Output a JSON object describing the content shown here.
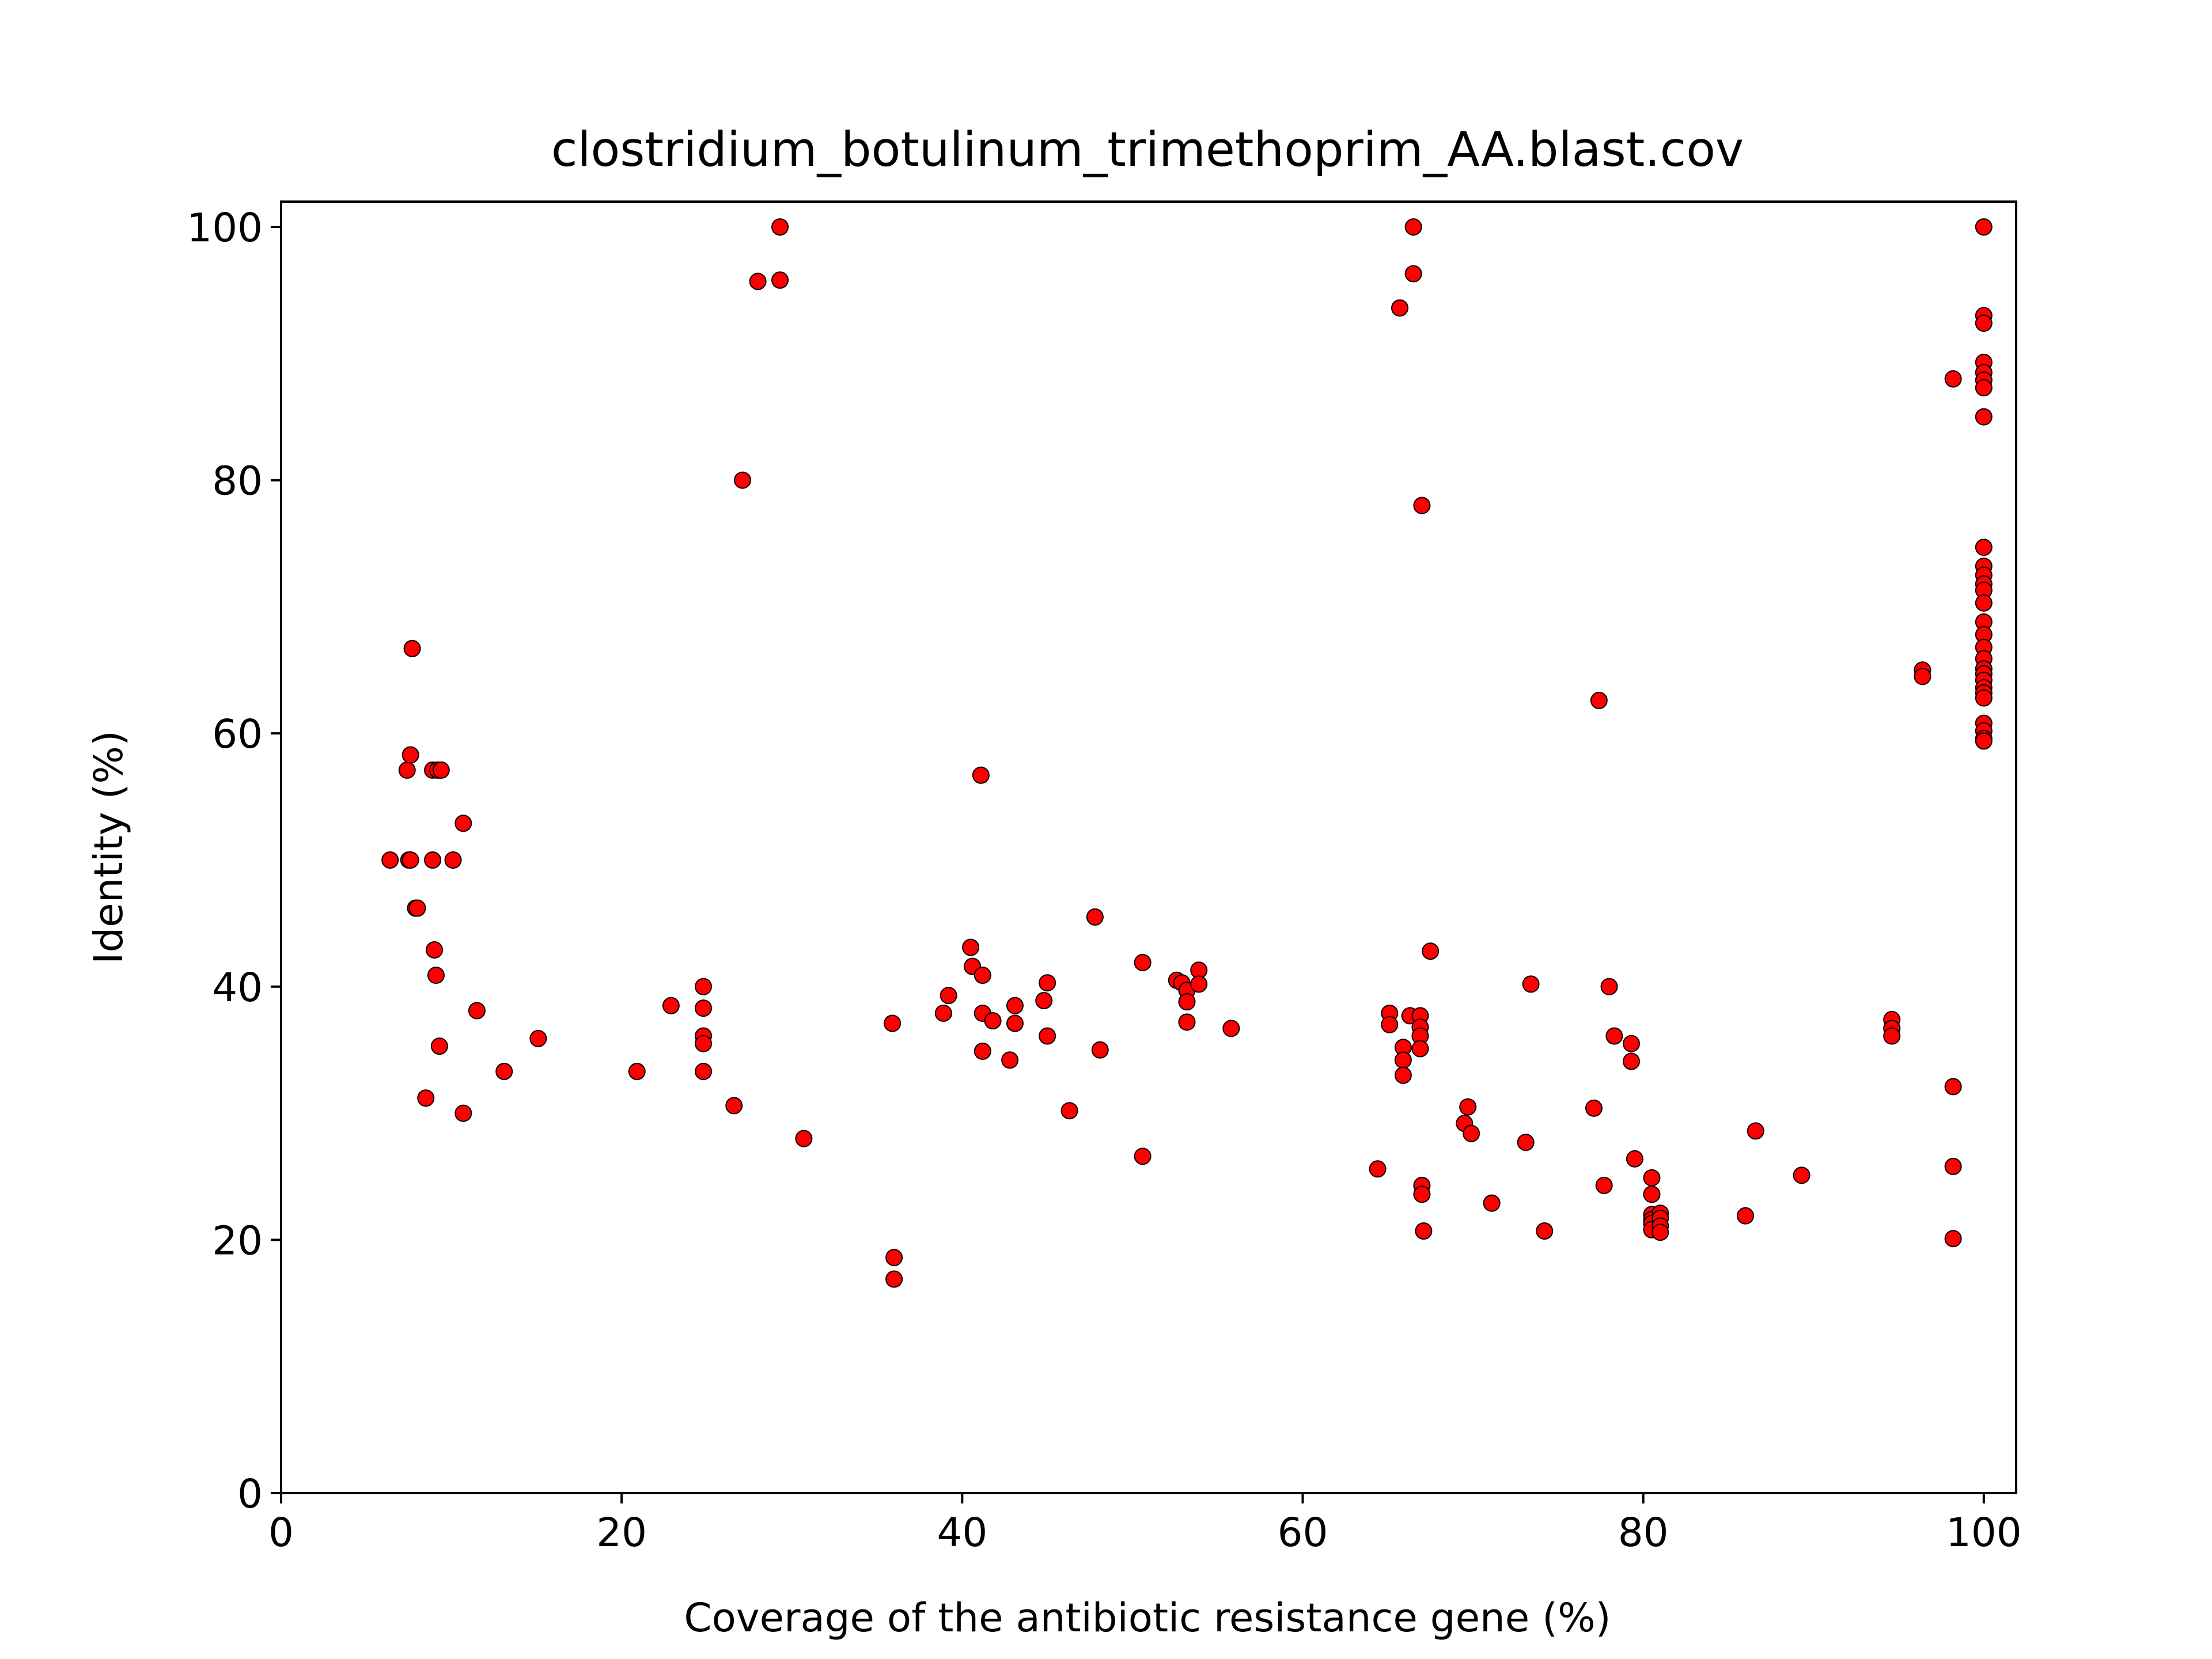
{
  "chart_data": {
    "type": "scatter",
    "title": "clostridium_botulinum_trimethoprim_AA.blast.cov",
    "xlabel": "Coverage of the antibiotic resistance gene (%)",
    "ylabel": "Identity (%)",
    "xlim": [
      0,
      101.9
    ],
    "ylim": [
      0,
      102
    ],
    "xticks": [
      "0",
      "20",
      "40",
      "60",
      "80",
      "100"
    ],
    "yticks": [
      "0",
      "20",
      "40",
      "60",
      "80",
      "100"
    ],
    "grid": false,
    "marker_color": "#ff0000",
    "marker_edge_color": "#000000",
    "x": [
      6.4,
      7.5,
      7.4,
      7.6,
      7.9,
      8.0,
      8.9,
      9.2,
      9.4,
      10.1,
      10.7,
      8.9,
      9.0,
      9.1,
      9.3,
      8.5,
      10.7,
      11.5,
      13.1,
      15.1,
      7.7,
      7.6,
      20.9,
      22.9,
      24.8,
      24.8,
      24.8,
      24.8,
      24.8,
      26.6,
      27.1,
      28.0,
      29.3,
      29.3,
      30.7,
      35.9,
      36.0,
      36.0,
      38.9,
      39.2,
      40.5,
      40.6,
      41.1,
      41.2,
      41.2,
      41.8,
      41.2,
      42.8,
      43.1,
      43.1,
      44.8,
      45.0,
      45.0,
      46.3,
      47.8,
      48.1,
      50.6,
      50.6,
      52.6,
      52.9,
      53.2,
      53.2,
      53.2,
      53.9,
      53.9,
      55.8,
      64.4,
      65.1,
      65.1,
      65.7,
      65.9,
      65.9,
      65.9,
      66.3,
      66.5,
      66.5,
      66.9,
      66.9,
      66.9,
      66.9,
      67.0,
      67.0,
      67.0,
      67.1,
      67.5,
      69.5,
      69.7,
      69.9,
      71.1,
      73.1,
      73.4,
      74.2,
      77.1,
      77.4,
      77.7,
      78.0,
      78.3,
      79.3,
      79.3,
      79.5,
      80.5,
      80.5,
      80.5,
      80.5,
      80.5,
      80.5,
      81.0,
      81.0,
      81.0,
      81.0,
      86.0,
      86.6,
      89.3,
      94.6,
      94.6,
      94.6,
      96.4,
      96.4,
      98.2,
      98.2,
      98.2,
      98.2,
      100,
      100,
      100,
      100,
      100,
      100,
      100,
      100,
      100,
      100,
      100,
      100,
      100,
      100,
      100,
      100,
      100,
      100,
      100,
      100,
      100,
      100,
      100,
      100,
      100,
      100,
      100,
      100
    ],
    "y": [
      50.0,
      50.0,
      57.1,
      58.3,
      46.2,
      46.2,
      57.1,
      57.1,
      57.1,
      50.0,
      52.9,
      50.0,
      42.9,
      40.9,
      35.3,
      31.2,
      30.0,
      38.1,
      33.3,
      35.9,
      66.7,
      50.0,
      33.3,
      38.5,
      40.0,
      38.3,
      36.1,
      35.5,
      33.3,
      30.6,
      80.0,
      95.7,
      100.0,
      95.8,
      28.0,
      37.1,
      18.6,
      16.9,
      37.9,
      39.3,
      43.1,
      41.6,
      56.7,
      40.9,
      37.9,
      37.3,
      34.9,
      34.2,
      38.5,
      37.1,
      38.9,
      40.3,
      36.1,
      30.2,
      45.5,
      35.0,
      41.9,
      26.6,
      40.5,
      40.3,
      39.7,
      38.8,
      37.2,
      41.3,
      40.2,
      36.7,
      25.6,
      37.9,
      37.0,
      93.6,
      35.2,
      34.2,
      33.0,
      37.7,
      100.0,
      96.3,
      37.7,
      36.8,
      36.1,
      35.1,
      78.0,
      24.3,
      23.6,
      20.7,
      42.8,
      29.2,
      30.5,
      28.4,
      22.9,
      27.7,
      40.2,
      20.7,
      30.4,
      62.6,
      24.3,
      40.0,
      36.1,
      35.5,
      34.1,
      26.4,
      24.9,
      23.6,
      22.0,
      21.6,
      21.3,
      20.8,
      22.1,
      21.7,
      21.1,
      20.6,
      21.9,
      28.6,
      25.1,
      37.4,
      36.7,
      36.1,
      65.0,
      64.5,
      88.0,
      32.1,
      25.8,
      20.1,
      100.0,
      93.0,
      92.4,
      89.3,
      88.5,
      87.9,
      87.3,
      85.0,
      74.7,
      73.2,
      72.5,
      71.8,
      71.3,
      70.3,
      68.8,
      67.8,
      66.8,
      65.9,
      65.1,
      64.7,
      64.2,
      63.6,
      63.2,
      62.8,
      60.8,
      60.2,
      59.6,
      59.4
    ]
  }
}
